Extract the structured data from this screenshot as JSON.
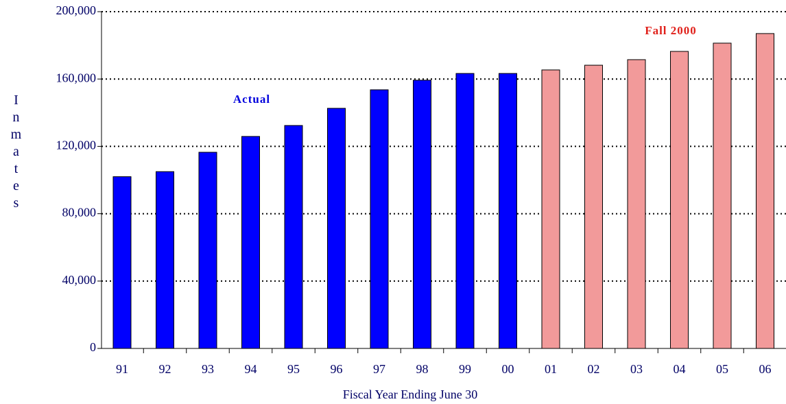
{
  "chart_data": {
    "type": "bar",
    "x_label": "Fiscal Year Ending June 30",
    "y_label": "Inmates",
    "categories": [
      "91",
      "92",
      "93",
      "94",
      "95",
      "96",
      "97",
      "98",
      "99",
      "00",
      "01",
      "02",
      "03",
      "04",
      "05",
      "06"
    ],
    "series": [
      {
        "name": "Actual",
        "color": "#0000ff",
        "values": [
          102000,
          105000,
          116500,
          125900,
          132400,
          142600,
          153600,
          159300,
          163300,
          163300,
          null,
          null,
          null,
          null,
          null,
          null
        ]
      },
      {
        "name": "Fall 2000",
        "color": "#f29a9a",
        "values": [
          null,
          null,
          null,
          null,
          null,
          null,
          null,
          null,
          null,
          null,
          165400,
          168200,
          171500,
          176400,
          181300,
          187000
        ]
      }
    ],
    "ylim": [
      0,
      200000
    ],
    "yticks": [
      0,
      {
        "value": 40000,
        "label": "40,000"
      },
      {
        "value": 80000,
        "label": "80,000"
      },
      {
        "value": 120000,
        "label": "120,000"
      },
      {
        "value": 160000,
        "label": "160,000"
      },
      {
        "value": 200000,
        "label": "200,000"
      }
    ],
    "grid": true
  }
}
